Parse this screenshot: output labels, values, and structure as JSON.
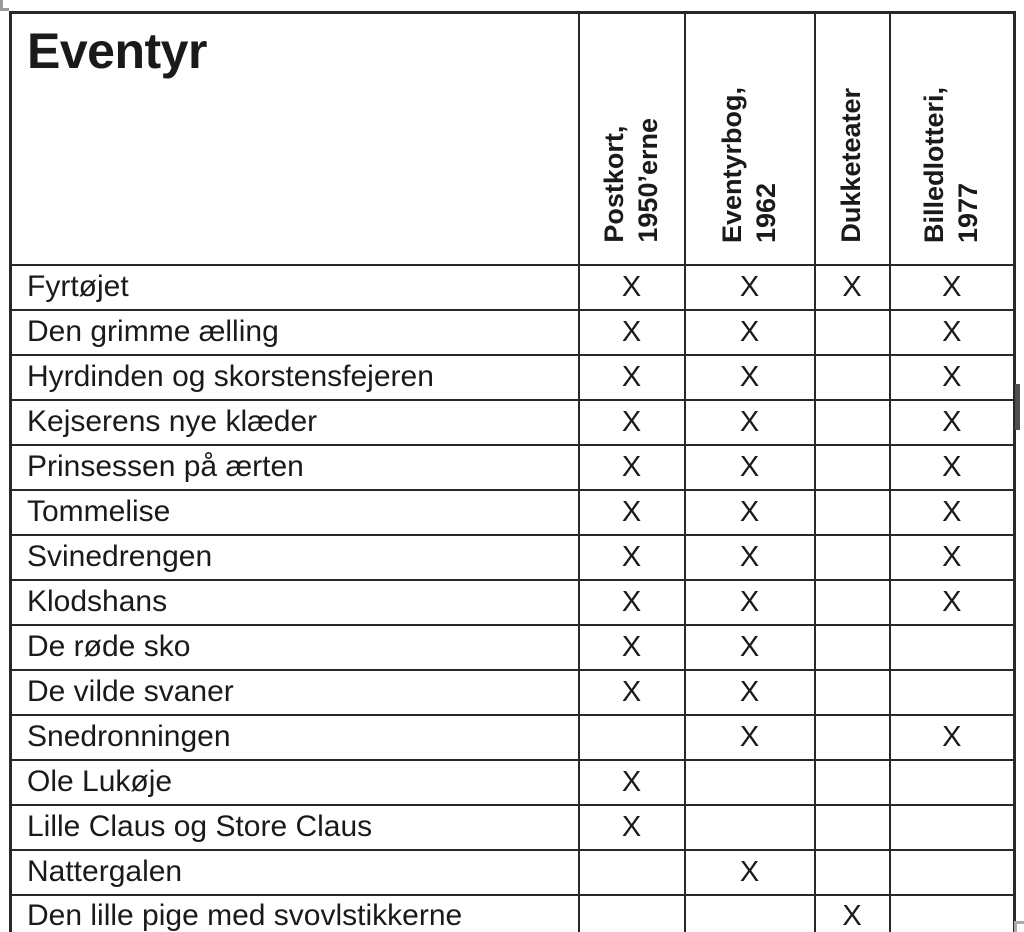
{
  "colors": {
    "border": "#282828",
    "text": "#1a1a1a",
    "anchor_mark_gray": "#9a9a9a",
    "resize_mark_gray": "#ababab",
    "cursor_bar": "#4e4e4e",
    "background": "#ffffff"
  },
  "table": {
    "title": "Eventyr",
    "columns": [
      {
        "id": "postkort",
        "label": "Postkort,\n1950’erne"
      },
      {
        "id": "eventyrbog",
        "label": "Eventyrbog,\n1962"
      },
      {
        "id": "dukketeater",
        "label": "Dukketeater"
      },
      {
        "id": "billedlotteri",
        "label": "Billedlotteri,\n1977"
      }
    ],
    "rows": [
      {
        "title": "Fyrtøjet",
        "marks": [
          "X",
          "X",
          "X",
          "X"
        ]
      },
      {
        "title": "Den grimme ælling",
        "marks": [
          "X",
          "X",
          "",
          "X"
        ]
      },
      {
        "title": "Hyrdinden og skorstensfejeren",
        "marks": [
          "X",
          "X",
          "",
          "X"
        ]
      },
      {
        "title": "Kejserens nye klæder",
        "marks": [
          "X",
          "X",
          "",
          "X"
        ]
      },
      {
        "title": "Prinsessen på ærten",
        "marks": [
          "X",
          "X",
          "",
          "X"
        ]
      },
      {
        "title": "Tommelise",
        "marks": [
          "X",
          "X",
          "",
          "X"
        ]
      },
      {
        "title": "Svinedrengen",
        "marks": [
          "X",
          "X",
          "",
          "X"
        ]
      },
      {
        "title": "Klodshans",
        "marks": [
          "X",
          "X",
          "",
          "X"
        ]
      },
      {
        "title": "De røde sko",
        "marks": [
          "X",
          "X",
          "",
          ""
        ]
      },
      {
        "title": "De vilde svaner",
        "marks": [
          "X",
          "X",
          "",
          ""
        ]
      },
      {
        "title": "Snedronningen",
        "marks": [
          "",
          "X",
          "",
          "X"
        ]
      },
      {
        "title": "Ole Lukøje",
        "marks": [
          "X",
          "",
          "",
          ""
        ]
      },
      {
        "title": "Lille Claus og Store Claus",
        "marks": [
          "X",
          "",
          "",
          ""
        ]
      },
      {
        "title": "Nattergalen",
        "marks": [
          "",
          "X",
          "",
          ""
        ]
      },
      {
        "title": "Den lille pige med svovlstikkerne",
        "marks": [
          "",
          "",
          "X",
          ""
        ]
      }
    ]
  },
  "chart_data": {
    "type": "table",
    "title": "Eventyr",
    "columns": [
      "Eventyr",
      "Postkort, 1950’erne",
      "Eventyrbog, 1962",
      "Dukketeater",
      "Billedlotteri, 1977"
    ],
    "rows": [
      [
        "Fyrtøjet",
        "X",
        "X",
        "X",
        "X"
      ],
      [
        "Den grimme ælling",
        "X",
        "X",
        "",
        "X"
      ],
      [
        "Hyrdinden og skorstensfejeren",
        "X",
        "X",
        "",
        "X"
      ],
      [
        "Kejserens nye klæder",
        "X",
        "X",
        "",
        "X"
      ],
      [
        "Prinsessen på ærten",
        "X",
        "X",
        "",
        "X"
      ],
      [
        "Tommelise",
        "X",
        "X",
        "",
        "X"
      ],
      [
        "Svinedrengen",
        "X",
        "X",
        "",
        "X"
      ],
      [
        "Klodshans",
        "X",
        "X",
        "",
        "X"
      ],
      [
        "De røde sko",
        "X",
        "X",
        "",
        ""
      ],
      [
        "De vilde svaner",
        "X",
        "X",
        "",
        ""
      ],
      [
        "Snedronningen",
        "",
        "X",
        "",
        "X"
      ],
      [
        "Ole Lukøje",
        "X",
        "",
        "",
        ""
      ],
      [
        "Lille Claus og Store Claus",
        "X",
        "",
        "",
        ""
      ],
      [
        "Nattergalen",
        "",
        "X",
        "",
        ""
      ],
      [
        "Den lille pige med svovlstikkerne",
        "",
        "",
        "X",
        ""
      ]
    ]
  }
}
